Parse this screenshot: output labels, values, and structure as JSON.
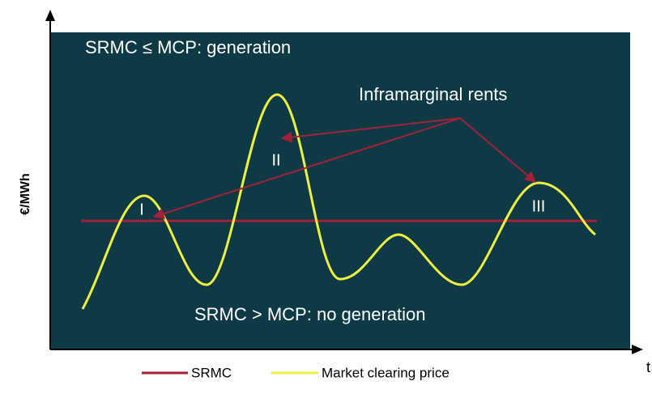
{
  "top_label": "SRMC ≤ MCP:  generation",
  "bottom_label": "SRMC > MCP:  no generation",
  "annotation": "Inframarginal rents",
  "regions": [
    "I",
    "II",
    "III"
  ],
  "y_axis_label": "€/MWh",
  "x_axis_label": "t",
  "legend": [
    "SRMC",
    "Market clearing price"
  ]
}
